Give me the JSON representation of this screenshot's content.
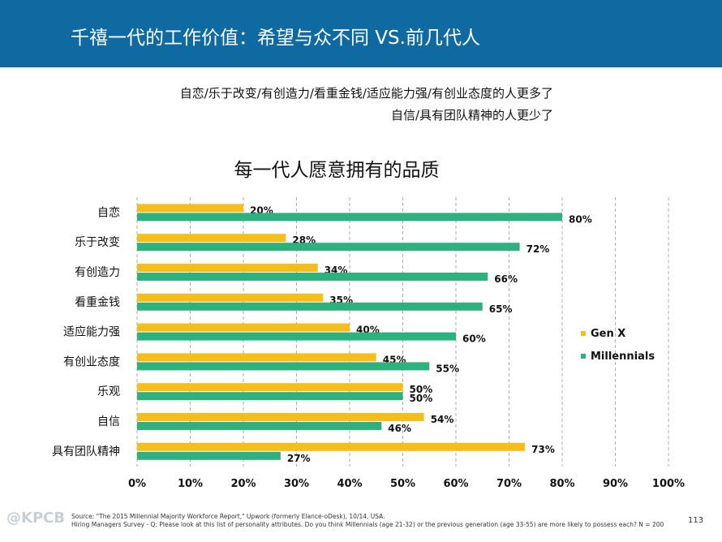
{
  "header": {
    "title": "千禧一代的工作价值：希望与众不同 VS.前几代人"
  },
  "subtitles": [
    "自恋/乐于改变/有创造力/看重金钱/适应能力强/有创业态度的人更多了",
    "自信/具有团队精神的人更少了"
  ],
  "footer": {
    "source": "Source: \"The 2015 Millennial Majority Workforce Report,\" Upwork (formerly Elance-oDesk), 10/14, USA.",
    "survey": "Hiring Managers Survey - Q: Please look at this list of personality attributes. Do you think Millennials (age 21-32) or the previous generation (age 33-55) are more likely to possess each? N = 200",
    "page": "113",
    "logo": "@KPCB"
  },
  "colors": {
    "header": "#0e6aa1",
    "genx": "#f6be1a",
    "millennials": "#2eb07f"
  },
  "chart_data": {
    "type": "bar",
    "orientation": "horizontal",
    "title": "每一代人愿意拥有的品质",
    "categories": [
      "自恋",
      "乐于改变",
      "有创造力",
      "看重金钱",
      "适应能力强",
      "有创业态度",
      "乐观",
      "自信",
      "具有团队精神"
    ],
    "series": [
      {
        "name": "Gen X",
        "values": [
          20,
          28,
          34,
          35,
          40,
          45,
          50,
          54,
          73
        ]
      },
      {
        "name": "Millennials",
        "values": [
          80,
          72,
          66,
          65,
          60,
          55,
          50,
          46,
          27
        ]
      }
    ],
    "xlim": [
      0,
      100
    ],
    "xticks": [
      "0%",
      "10%",
      "20%",
      "30%",
      "40%",
      "50%",
      "60%",
      "70%",
      "80%",
      "90%",
      "100%"
    ],
    "legend": "right",
    "grid": true
  }
}
